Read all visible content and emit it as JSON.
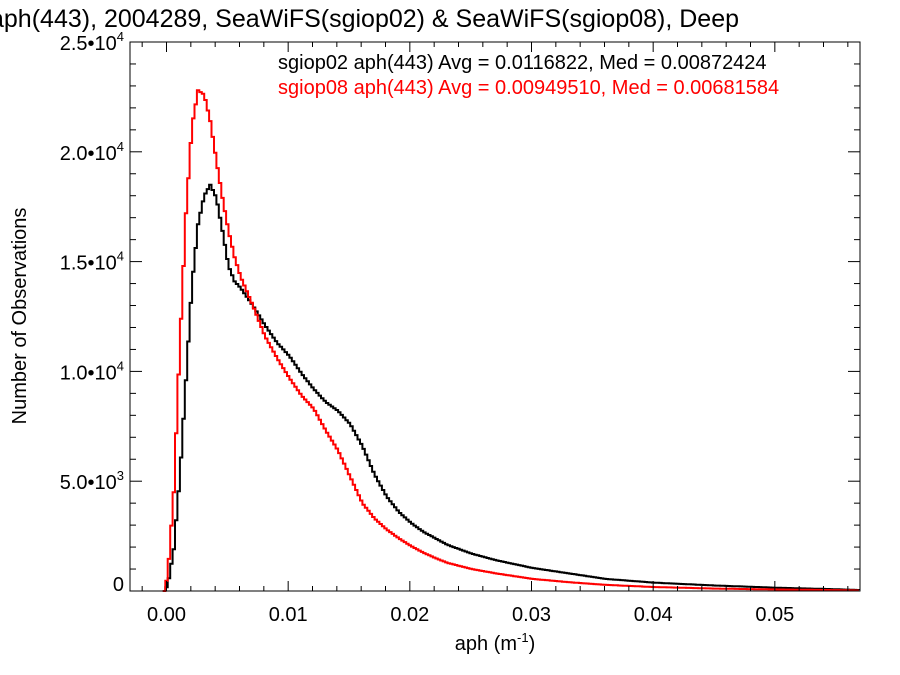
{
  "chart_data": {
    "type": "line",
    "title": "aph(443), 2004289, SeaWiFS(sgiop02) & SeaWiFS(sgiop08), Deep",
    "xlabel": "aph (m",
    "xlabel_sup": "-1",
    "xlabel_end": ")",
    "ylabel": "Number of Observations",
    "xlim": [
      -0.003,
      0.057
    ],
    "ylim": [
      0,
      25000
    ],
    "x_ticks": [
      0.0,
      0.01,
      0.02,
      0.03,
      0.04,
      0.05
    ],
    "x_tick_labels": [
      "0.00",
      "0.01",
      "0.02",
      "0.03",
      "0.04",
      "0.05"
    ],
    "y_ticks": [
      0,
      5000,
      10000,
      15000,
      20000,
      25000
    ],
    "y_tick_labels": [
      {
        "base": "0",
        "exp": ""
      },
      {
        "base": "5.0•10",
        "exp": "3"
      },
      {
        "base": "1.0•10",
        "exp": "4"
      },
      {
        "base": "1.5•10",
        "exp": "4"
      },
      {
        "base": "2.0•10",
        "exp": "4"
      },
      {
        "base": "2.5•10",
        "exp": "4"
      }
    ],
    "grid": false,
    "legend_position": "top-right",
    "series": [
      {
        "name": "sgiop02 aph(443) Avg = 0.0116822, Med = 0.00872424",
        "color": "#000000",
        "x": [
          -0.0003,
          0.0,
          0.0005,
          0.001,
          0.0015,
          0.002,
          0.0025,
          0.003,
          0.0035,
          0.004,
          0.0045,
          0.005,
          0.0055,
          0.006,
          0.007,
          0.008,
          0.009,
          0.01,
          0.011,
          0.012,
          0.013,
          0.014,
          0.015,
          0.016,
          0.017,
          0.018,
          0.019,
          0.02,
          0.021,
          0.022,
          0.023,
          0.025,
          0.027,
          0.03,
          0.033,
          0.036,
          0.04,
          0.045,
          0.05,
          0.055,
          0.057
        ],
        "y": [
          0,
          250,
          1900,
          5200,
          9600,
          14000,
          16700,
          18000,
          18500,
          17900,
          16400,
          14800,
          14100,
          13800,
          13000,
          12100,
          11300,
          10700,
          9900,
          9200,
          8600,
          8200,
          7600,
          6600,
          5300,
          4300,
          3600,
          3100,
          2700,
          2400,
          2100,
          1700,
          1400,
          1050,
          800,
          550,
          380,
          250,
          150,
          80,
          40
        ]
      },
      {
        "name": "sgiop08 aph(443) Avg = 0.00949510, Med = 0.00681584",
        "color": "#ff0000",
        "x": [
          -0.0003,
          0.0,
          0.0005,
          0.001,
          0.0015,
          0.002,
          0.0025,
          0.003,
          0.0035,
          0.004,
          0.0045,
          0.005,
          0.0055,
          0.006,
          0.007,
          0.008,
          0.009,
          0.01,
          0.011,
          0.012,
          0.013,
          0.014,
          0.015,
          0.016,
          0.017,
          0.018,
          0.019,
          0.02,
          0.021,
          0.022,
          0.023,
          0.025,
          0.027,
          0.03,
          0.033,
          0.036,
          0.04,
          0.045,
          0.05,
          0.055,
          0.057
        ],
        "y": [
          0,
          700,
          4500,
          11200,
          17200,
          21200,
          22800,
          22600,
          21400,
          19600,
          17900,
          16400,
          15200,
          14300,
          13000,
          11600,
          10600,
          9700,
          8900,
          8300,
          7300,
          6400,
          5200,
          4000,
          3300,
          2800,
          2400,
          2050,
          1750,
          1500,
          1280,
          1000,
          800,
          550,
          400,
          280,
          180,
          110,
          70,
          40,
          20
        ]
      }
    ]
  }
}
